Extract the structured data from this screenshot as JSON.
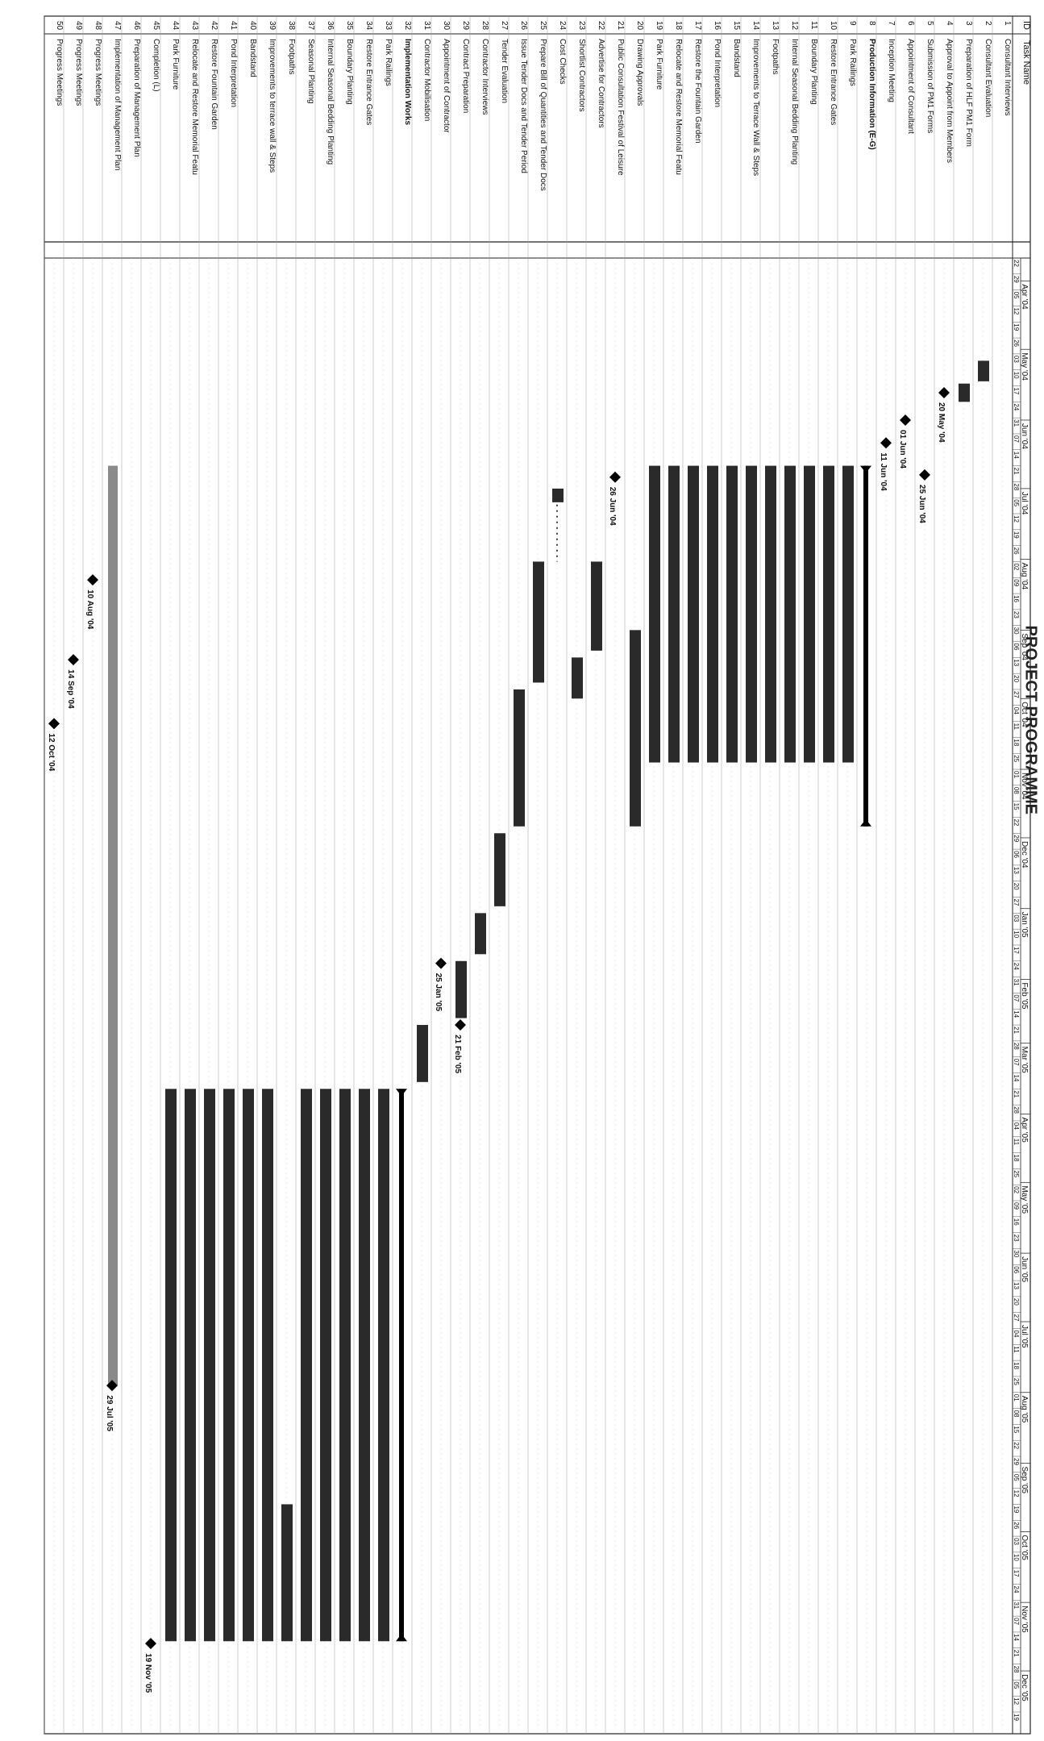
{
  "page": {
    "title": "PROJECT PROGRAMME"
  },
  "header": {
    "id_label": "ID",
    "name_label": "Task Name"
  },
  "timescale": {
    "months": [
      "Apr '04",
      "May '04",
      "Jun '04",
      "Jul '04",
      "Aug '04",
      "Sep '04",
      "Oct '04",
      "Nov '04",
      "Dec '04",
      "Jan '05",
      "Feb '05",
      "Mar '05",
      "Apr '05",
      "May '05",
      "Jun '05",
      "Jul '05",
      "Aug '05",
      "Sep '05",
      "Oct '05",
      "Nov '05",
      "Dec '05"
    ],
    "week_ticks": [
      "22",
      "29",
      "05",
      "12",
      "19",
      "26",
      "03",
      "10",
      "17",
      "24",
      "31",
      "07",
      "14",
      "21",
      "28",
      "05",
      "12",
      "19",
      "26",
      "02",
      "09",
      "16",
      "23",
      "30",
      "06",
      "13",
      "20",
      "27",
      "04",
      "11",
      "18",
      "25",
      "01",
      "08",
      "15",
      "22",
      "29",
      "06",
      "13",
      "20",
      "27",
      "03",
      "10",
      "17",
      "24",
      "31",
      "07",
      "14",
      "21",
      "28",
      "07",
      "14",
      "21",
      "28",
      "04",
      "11",
      "18",
      "25",
      "02",
      "09",
      "16",
      "23",
      "30",
      "06",
      "13",
      "20",
      "27",
      "04",
      "11",
      "18",
      "25",
      "01",
      "08",
      "15",
      "22",
      "29",
      "05",
      "12",
      "19",
      "26",
      "03",
      "10",
      "17",
      "24",
      "31",
      "07",
      "14",
      "21",
      "28",
      "05",
      "12",
      "19"
    ]
  },
  "chart_data": {
    "type": "gantt",
    "title": "PROJECT PROGRAMME",
    "x_axis": {
      "type": "date",
      "range": [
        "2004-03-22",
        "2005-12-25"
      ]
    },
    "tasks": [
      {
        "id": "1",
        "name": "Consultant Interviews"
      },
      {
        "id": "2",
        "name": "Consultant Evaluation",
        "start": "2004-05-06",
        "end": "2004-05-15",
        "style": "bar"
      },
      {
        "id": "3",
        "name": "Preparation of HLF PM1 Form",
        "start": "2004-05-16",
        "end": "2004-05-24",
        "style": "bar"
      },
      {
        "id": "4",
        "name": "Approval to Appoint from Members",
        "date": "2004-05-20",
        "label": "20 May '04",
        "style": "milestone"
      },
      {
        "id": "5",
        "name": "Submission of PM1 Forms",
        "date": "2004-06-25",
        "label": "25 Jun '04",
        "style": "milestone"
      },
      {
        "id": "6",
        "name": "Appointment of Consultant",
        "date": "2004-06-01",
        "label": "01 Jun '04",
        "style": "milestone"
      },
      {
        "id": "7",
        "name": "Inception Meeting",
        "date": "2004-06-11",
        "label": "11 Jun '04",
        "style": "milestone"
      },
      {
        "id": "8",
        "name": "Production Information (E-G)",
        "start": "2004-06-21",
        "end": "2004-11-26",
        "style": "summary"
      },
      {
        "id": "9",
        "name": "Park Railings",
        "start": "2004-06-21",
        "end": "2004-10-29",
        "style": "bar"
      },
      {
        "id": "10",
        "name": "Restore Entrance Gates",
        "start": "2004-06-21",
        "end": "2004-10-29",
        "style": "bar"
      },
      {
        "id": "11",
        "name": "Boundary Planting",
        "start": "2004-06-21",
        "end": "2004-10-29",
        "style": "bar"
      },
      {
        "id": "12",
        "name": "Internal Seasonal Bedding Planting",
        "start": "2004-06-21",
        "end": "2004-10-29",
        "style": "bar"
      },
      {
        "id": "13",
        "name": "Footpaths",
        "start": "2004-06-21",
        "end": "2004-10-29",
        "style": "bar"
      },
      {
        "id": "14",
        "name": "Improvements to Terrace Wall & Steps",
        "start": "2004-06-21",
        "end": "2004-10-29",
        "style": "bar"
      },
      {
        "id": "15",
        "name": "Bandstand",
        "start": "2004-06-21",
        "end": "2004-10-29",
        "style": "bar"
      },
      {
        "id": "16",
        "name": "Pond Interpretation",
        "start": "2004-06-21",
        "end": "2004-10-29",
        "style": "bar"
      },
      {
        "id": "17",
        "name": "Restore the Fountain Garden",
        "start": "2004-06-21",
        "end": "2004-10-29",
        "style": "bar"
      },
      {
        "id": "18",
        "name": "Relocate and Restore Memorial Featu",
        "start": "2004-06-21",
        "end": "2004-10-29",
        "style": "bar"
      },
      {
        "id": "19",
        "name": "Park Furniture",
        "start": "2004-06-21",
        "end": "2004-10-29",
        "style": "bar"
      },
      {
        "id": "20",
        "name": "Drawing Approvals",
        "start": "2004-09-01",
        "end": "2004-11-26",
        "style": "bar"
      },
      {
        "id": "21",
        "name": "Public Consultation Festival of Leisure",
        "date": "2004-06-26",
        "label": "26 Jun '04",
        "style": "milestone"
      },
      {
        "id": "22",
        "name": "Advertise for Contractors",
        "start": "2004-08-02",
        "end": "2004-09-10",
        "style": "bar"
      },
      {
        "id": "23",
        "name": "Shortlist Contractors",
        "start": "2004-09-13",
        "end": "2004-10-01",
        "style": "bar"
      },
      {
        "id": "24",
        "name": "Cost Checks",
        "start": "2004-07-01",
        "end": "2004-07-07",
        "style": "bar"
      },
      {
        "id": "25",
        "name": "Prepare Bill of Quantities and Tender Docs",
        "start": "2004-08-02",
        "end": "2004-09-24",
        "style": "bar"
      },
      {
        "id": "26",
        "name": "Issue Tender Docs and Tender Period",
        "start": "2004-09-27",
        "end": "2004-11-26",
        "style": "bar"
      },
      {
        "id": "27",
        "name": "Tender Evaluation",
        "start": "2004-11-29",
        "end": "2004-12-31",
        "style": "bar"
      },
      {
        "id": "28",
        "name": "Contractor Interviews",
        "start": "2005-01-03",
        "end": "2005-01-21",
        "style": "bar"
      },
      {
        "id": "29",
        "name": "Contract Preparation",
        "start": "2005-01-24",
        "end": "2005-02-18",
        "style": "bar"
      },
      {
        "id": "30",
        "name": "Appointment of Contractor",
        "date": "2005-01-25",
        "label": "25 Jan '05",
        "style": "milestone"
      },
      {
        "id": "31",
        "name": "Contractor Mobilisation",
        "start": "2005-02-21",
        "end": "2005-03-18",
        "style": "bar"
      },
      {
        "id": "32",
        "name": "Implementation Works",
        "start": "2005-03-21",
        "end": "2005-11-18",
        "style": "summary"
      },
      {
        "id": "33",
        "name": "Park Railings",
        "start": "2005-03-21",
        "end": "2005-11-18",
        "style": "bar"
      },
      {
        "id": "34",
        "name": "Restore Entrance Gates",
        "start": "2005-03-21",
        "end": "2005-11-18",
        "style": "bar"
      },
      {
        "id": "35",
        "name": "Boundary Planting",
        "start": "2005-03-21",
        "end": "2005-11-18",
        "style": "bar"
      },
      {
        "id": "36",
        "name": "Internal Seasonal Bedding Planting",
        "start": "2005-03-21",
        "end": "2005-11-18",
        "style": "bar"
      },
      {
        "id": "37",
        "name": "Seasonal Planting",
        "start": "2005-03-21",
        "end": "2005-11-18",
        "style": "bar"
      },
      {
        "id": "38",
        "name": "Footpaths",
        "start": "2005-09-19",
        "end": "2005-11-18",
        "style": "bar"
      },
      {
        "id": "39",
        "name": "Improvements to terrace wall & Steps",
        "start": "2005-03-21",
        "end": "2005-11-18",
        "style": "bar"
      },
      {
        "id": "40",
        "name": "Bandstand",
        "start": "2005-03-21",
        "end": "2005-11-18",
        "style": "bar"
      },
      {
        "id": "41",
        "name": "Pond Interpretation",
        "start": "2005-03-21",
        "end": "2005-11-18",
        "style": "bar"
      },
      {
        "id": "42",
        "name": "Restore Fountain Garden",
        "start": "2005-03-21",
        "end": "2005-11-18",
        "style": "bar"
      },
      {
        "id": "43",
        "name": "Relocate and Restore Memorial Featu",
        "start": "2005-03-21",
        "end": "2005-11-18",
        "style": "bar"
      },
      {
        "id": "44",
        "name": "Park Furniture",
        "start": "2005-03-21",
        "end": "2005-11-18",
        "style": "bar"
      },
      {
        "id": "45",
        "name": "Completion (L)"
      },
      {
        "id": "46",
        "name": "Preparation of Management Plan"
      },
      {
        "id": "47",
        "name": "Implementation of Management Plan",
        "start": "2004-06-21",
        "end": "2005-07-29",
        "style": "grey"
      },
      {
        "id": "48",
        "name": "Progress Meetings",
        "date": "2004-08-10",
        "label": "10 Aug '04",
        "style": "milestone"
      },
      {
        "id": "49",
        "name": "Progress Meetings",
        "date": "2004-09-14",
        "label": "14 Sep '04",
        "style": "milestone"
      },
      {
        "id": "50",
        "name": "Progress Meetings",
        "date": "2004-10-12",
        "label": "12 Oct '04",
        "style": "milestone"
      }
    ],
    "extra_milestones": [
      {
        "row": "29",
        "date": "2005-02-21",
        "label": "21 Feb '05"
      },
      {
        "row": "47",
        "date": "2005-07-29",
        "label": "29 Jul '05"
      },
      {
        "row": "45",
        "date": "2005-11-19",
        "label": "19 Nov '05"
      }
    ]
  }
}
